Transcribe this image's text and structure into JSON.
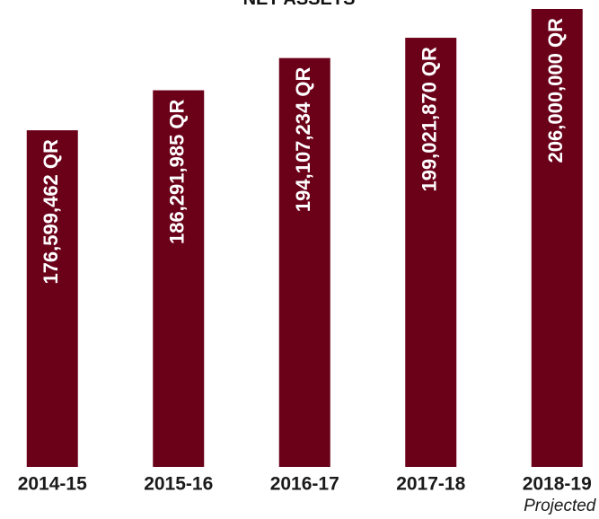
{
  "chart_data": {
    "type": "bar",
    "title": "NET ASSETS",
    "categories": [
      "2014-15",
      "2015-16",
      "2016-17",
      "2017-18",
      "2018-19"
    ],
    "values": [
      176599462,
      186291985,
      194107234,
      199021870,
      206000000
    ],
    "value_labels": [
      "176,599,462 QR",
      "186,291,985 QR",
      "194,107,234 QR",
      "199,021,870 QR",
      "206,000,000 QR"
    ],
    "annotation": "Projected",
    "color": "#6b0019",
    "ylim": [
      95000000,
      206000000
    ]
  }
}
